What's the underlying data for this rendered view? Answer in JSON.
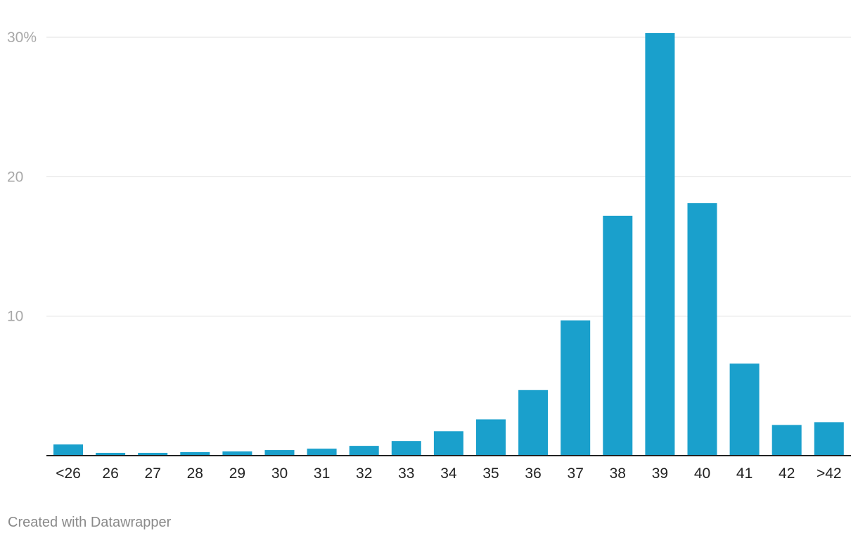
{
  "chart_data": {
    "type": "bar",
    "categories": [
      "<26",
      "26",
      "27",
      "28",
      "29",
      "30",
      "31",
      "32",
      "33",
      "34",
      "35",
      "36",
      "37",
      "38",
      "39",
      "40",
      "41",
      "42",
      ">42"
    ],
    "values": [
      0.8,
      0.2,
      0.2,
      0.25,
      0.3,
      0.4,
      0.5,
      0.7,
      1.05,
      1.75,
      2.6,
      4.7,
      9.7,
      17.2,
      30.3,
      18.1,
      6.6,
      2.2,
      2.4
    ],
    "title": "",
    "xlabel": "",
    "ylabel": "",
    "ylim": [
      0,
      30
    ],
    "yticks": [
      {
        "value": 30,
        "label": "30%"
      },
      {
        "value": 20,
        "label": "20"
      },
      {
        "value": 10,
        "label": "10"
      }
    ],
    "grid": true,
    "bar_color": "#1aa0cc"
  },
  "footer": {
    "credit": "Created with Datawrapper"
  }
}
